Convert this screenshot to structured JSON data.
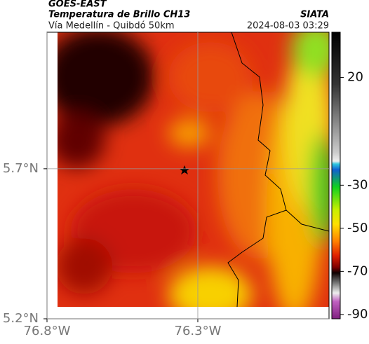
{
  "header": {
    "title": "GOES-EAST",
    "subtitle": "Temperatura de Brillo CH13",
    "source": "SIATA",
    "region": "Vía Medellín - Quibdó 50km",
    "timestamp": "2024-08-03 03:29"
  },
  "map": {
    "xlim": [
      -76.8,
      -75.865
    ],
    "ylim": [
      5.2,
      6.155
    ],
    "xticks": [
      {
        "value": -76.8,
        "label": "76.8°W"
      },
      {
        "value": -76.3,
        "label": "76.3°W"
      }
    ],
    "yticks": [
      {
        "value": 5.2,
        "label": "5.2°N"
      },
      {
        "value": 5.7,
        "label": "5.7°N"
      }
    ],
    "grid": true
  },
  "colorbar": {
    "lim": [
      -92,
      41
    ],
    "ticks": [
      20,
      -30,
      -50,
      -70,
      -90
    ]
  }
}
